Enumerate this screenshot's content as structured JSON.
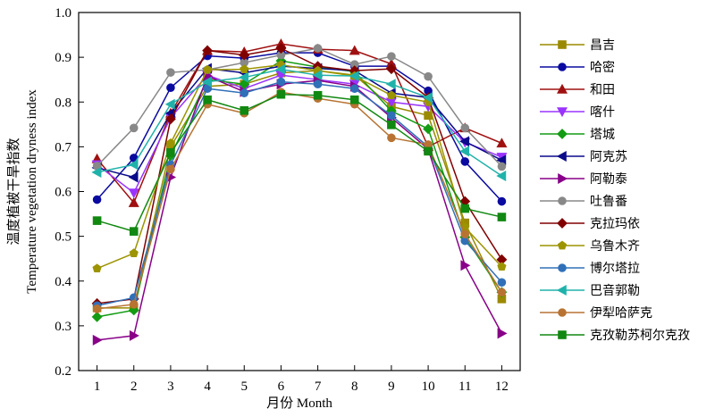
{
  "chart_data": {
    "type": "line",
    "title": "",
    "xlabel": "月份 Month",
    "ylabel_cn": "温度植被干旱指数",
    "ylabel_en": "Temperature vegetation dryness index",
    "xlim": [
      0.5,
      12.5
    ],
    "ylim": [
      0.2,
      1.0
    ],
    "x": [
      1,
      2,
      3,
      4,
      5,
      6,
      7,
      8,
      9,
      10,
      11,
      12
    ],
    "x_tick_labels": [
      "1",
      "2",
      "3",
      "4",
      "5",
      "6",
      "7",
      "8",
      "9",
      "10",
      "11",
      "12"
    ],
    "y_ticks": [
      0.2,
      0.3,
      0.4,
      0.5,
      0.6,
      0.7,
      0.8,
      0.9,
      1.0
    ],
    "y_tick_labels": [
      "0.2",
      "0.3",
      "0.4",
      "0.5",
      "0.6",
      "0.7",
      "0.8",
      "0.9",
      "1.0"
    ],
    "grid": false,
    "legend_position": "right",
    "series": [
      {
        "name": "昌吉",
        "color": "#9a8a00",
        "marker": "square",
        "values": [
          0.34,
          0.34,
          0.7,
          0.835,
          0.84,
          0.865,
          0.87,
          0.86,
          0.79,
          0.77,
          0.53,
          0.36
        ]
      },
      {
        "name": "哈密",
        "color": "#0a0aa0",
        "marker": "circle",
        "values": [
          0.582,
          0.675,
          0.832,
          0.903,
          0.898,
          0.91,
          0.91,
          0.88,
          0.88,
          0.825,
          0.667,
          0.578
        ]
      },
      {
        "name": "和田",
        "color": "#a01010",
        "marker": "triangle-up",
        "values": [
          0.673,
          0.575,
          0.775,
          0.915,
          0.912,
          0.93,
          0.918,
          0.915,
          0.885,
          0.7,
          0.742,
          0.708
        ]
      },
      {
        "name": "喀什",
        "color": "#9933ff",
        "marker": "triangle-down",
        "values": [
          0.66,
          0.597,
          0.765,
          0.86,
          0.83,
          0.86,
          0.85,
          0.84,
          0.8,
          0.79,
          0.71,
          0.677
        ]
      },
      {
        "name": "塔城",
        "color": "#139c13",
        "marker": "diamond",
        "values": [
          0.32,
          0.335,
          0.68,
          0.85,
          0.84,
          0.892,
          0.878,
          0.868,
          0.78,
          0.74,
          0.498,
          0.375
        ]
      },
      {
        "name": "阿克苏",
        "color": "#0a0a8a",
        "marker": "triangle-left",
        "values": [
          0.653,
          0.632,
          0.775,
          0.875,
          0.865,
          0.88,
          0.875,
          0.87,
          0.82,
          0.81,
          0.712,
          0.67
        ]
      },
      {
        "name": "阿勒泰",
        "color": "#880088",
        "marker": "triangle-right",
        "values": [
          0.268,
          0.278,
          0.632,
          0.858,
          0.823,
          0.84,
          0.848,
          0.835,
          0.765,
          0.695,
          0.435,
          0.283
        ]
      },
      {
        "name": "吐鲁番",
        "color": "#888888",
        "marker": "circle",
        "values": [
          0.657,
          0.742,
          0.866,
          0.872,
          0.888,
          0.905,
          0.92,
          0.884,
          0.902,
          0.857,
          0.742,
          0.656
        ]
      },
      {
        "name": "克拉玛依",
        "color": "#800000",
        "marker": "diamond",
        "values": [
          0.35,
          0.36,
          0.762,
          0.915,
          0.905,
          0.92,
          0.88,
          0.87,
          0.874,
          0.81,
          0.578,
          0.448
        ]
      },
      {
        "name": "乌鲁木齐",
        "color": "#9c9400",
        "marker": "pentagon",
        "values": [
          0.428,
          0.462,
          0.708,
          0.872,
          0.873,
          0.883,
          0.87,
          0.858,
          0.815,
          0.8,
          0.52,
          0.432
        ]
      },
      {
        "name": "博尔塔拉",
        "color": "#3070b8",
        "marker": "circle",
        "values": [
          0.345,
          0.363,
          0.66,
          0.83,
          0.82,
          0.845,
          0.84,
          0.83,
          0.77,
          0.7,
          0.49,
          0.397
        ]
      },
      {
        "name": "巴音郭勒",
        "color": "#20b2aa",
        "marker": "triangle-left",
        "values": [
          0.643,
          0.66,
          0.795,
          0.845,
          0.855,
          0.873,
          0.86,
          0.858,
          0.84,
          0.81,
          0.69,
          0.635
        ]
      },
      {
        "name": "伊犁哈萨克",
        "color": "#b87333",
        "marker": "circle",
        "values": [
          0.338,
          0.348,
          0.65,
          0.795,
          0.775,
          0.822,
          0.808,
          0.795,
          0.72,
          0.705,
          0.505,
          0.375
        ]
      },
      {
        "name": "克孜勒苏柯尔克孜",
        "color": "#118811",
        "marker": "square",
        "values": [
          0.535,
          0.511,
          0.687,
          0.805,
          0.781,
          0.817,
          0.815,
          0.805,
          0.749,
          0.69,
          0.562,
          0.543
        ]
      }
    ]
  }
}
